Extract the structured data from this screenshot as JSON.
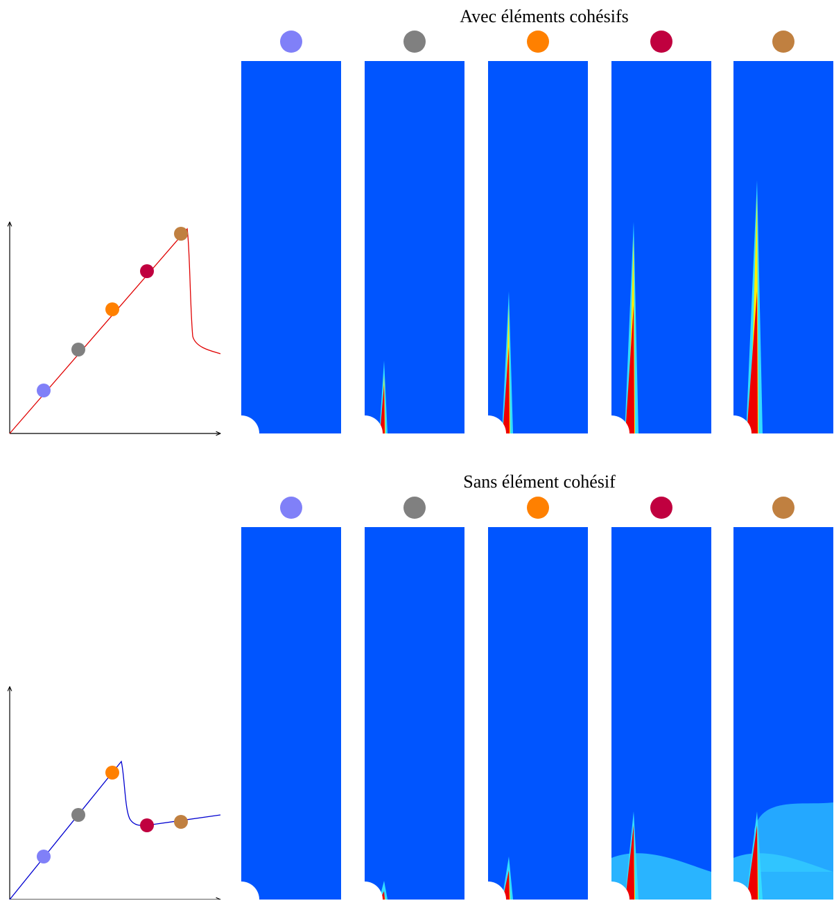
{
  "panels": [
    {
      "title": "Avec éléments cohésifs"
    },
    {
      "title": "Sans élément cohésif"
    }
  ],
  "state_colors": [
    "#8080f8",
    "#808080",
    "#ff8000",
    "#c0003f",
    "#c08040"
  ]
}
